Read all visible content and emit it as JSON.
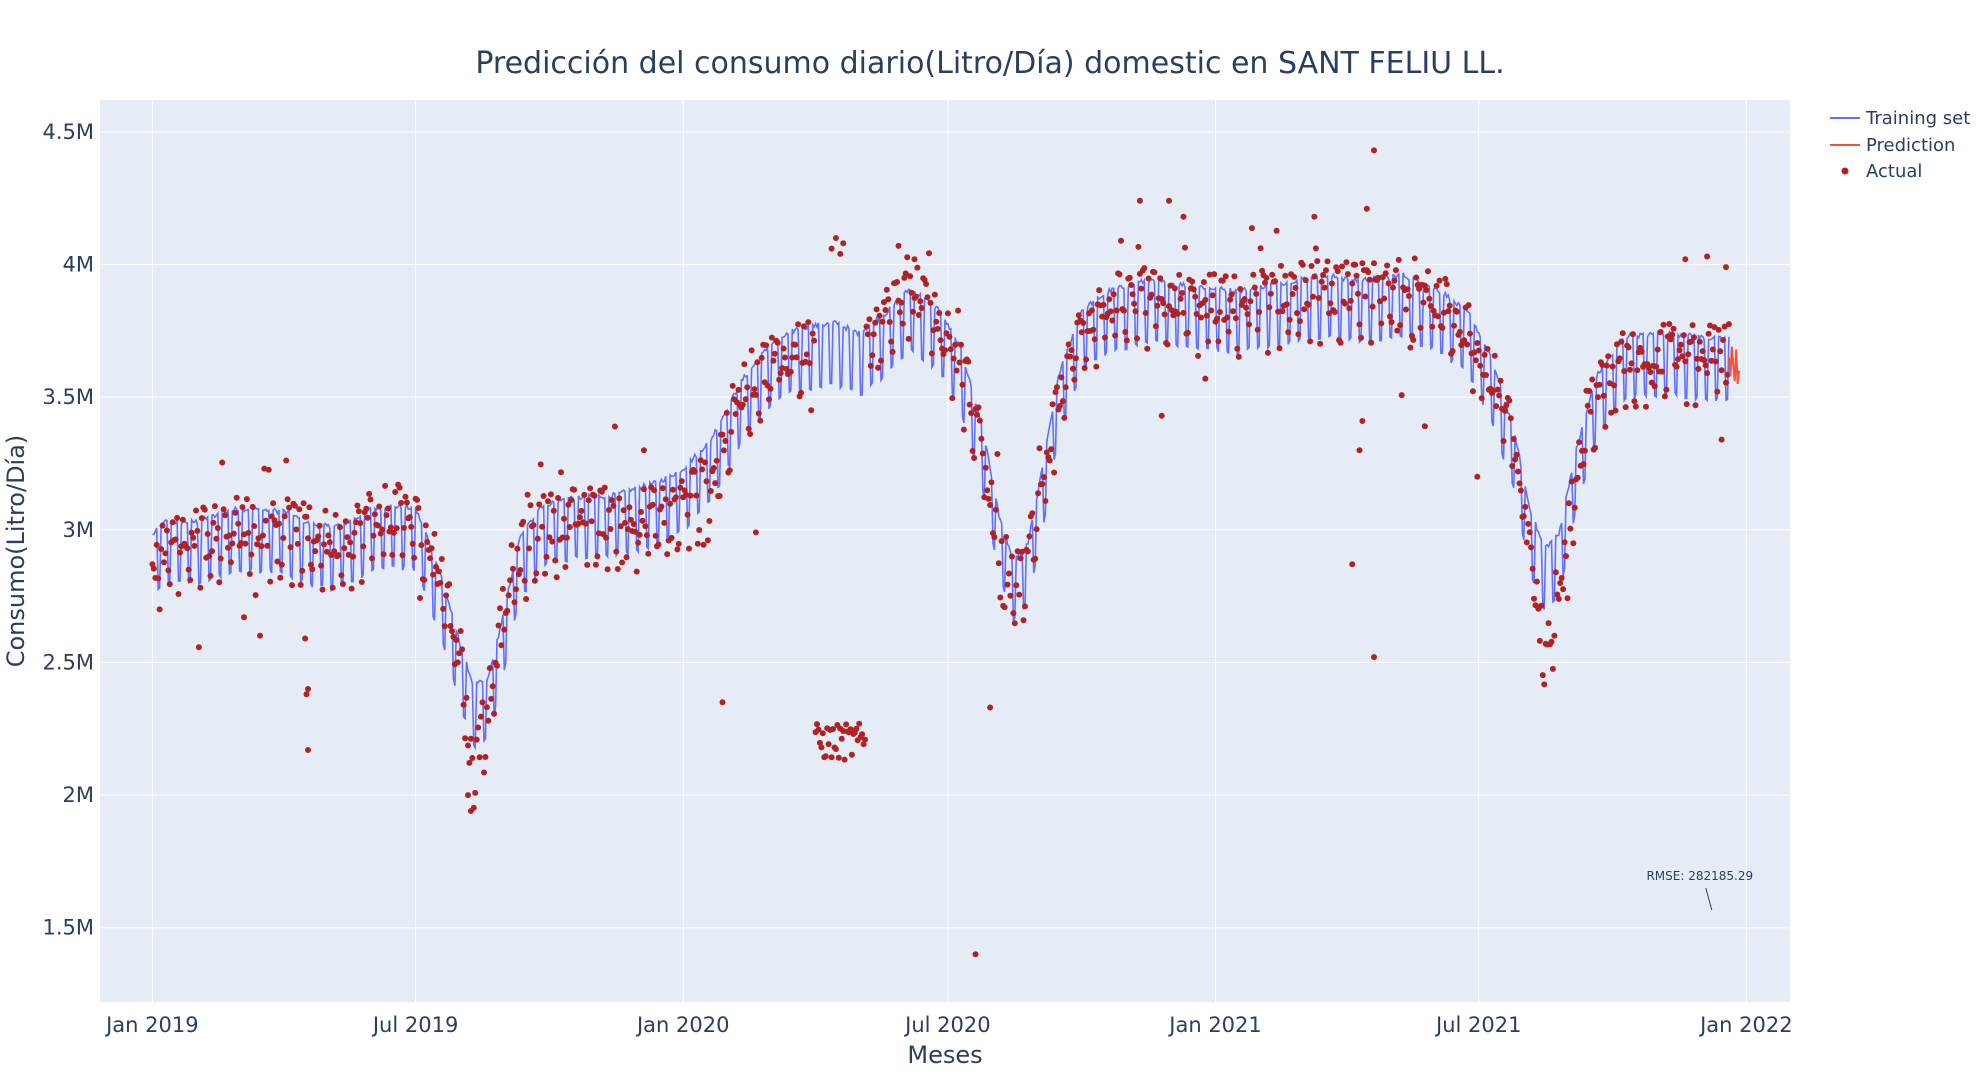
{
  "chart_data": {
    "type": "line",
    "title": "Predicción del consumo diario(Litro/Día) domestic en SANT FELIU LL.",
    "xlabel": "Meses",
    "ylabel": "Consumo(Litro/Día)",
    "x_ticks": [
      "Jan 2019",
      "Jul 2019",
      "Jan 2020",
      "Jul 2020",
      "Jan 2021",
      "Jul 2021",
      "Jan 2022"
    ],
    "y_ticks": [
      "1.5M",
      "2M",
      "2.5M",
      "3M",
      "3.5M",
      "4M",
      "4.5M"
    ],
    "xlim": [
      "2018-11-26",
      "2022-01-31"
    ],
    "ylim": [
      1220000,
      4620000
    ],
    "grid": true,
    "legend_position": "top-right",
    "colors": {
      "training": "#636efa",
      "prediction": "#ef553b",
      "actual": "#b22222",
      "plot_bg": "#e5ecf6",
      "grid": "#ffffff"
    },
    "weekly_pattern": {
      "weekday_offset": 80000,
      "weekend_offset": -150000
    },
    "series": [
      {
        "name": "Training set",
        "kind": "line",
        "trend": [
          [
            "2019-01-01",
            2900000
          ],
          [
            "2019-01-10",
            2950000
          ],
          [
            "2019-02-01",
            2950000
          ],
          [
            "2019-03-01",
            3000000
          ],
          [
            "2019-04-01",
            2990000
          ],
          [
            "2019-04-20",
            2940000
          ],
          [
            "2019-05-05",
            2930000
          ],
          [
            "2019-05-20",
            2960000
          ],
          [
            "2019-06-01",
            3000000
          ],
          [
            "2019-06-15",
            3010000
          ],
          [
            "2019-07-01",
            3000000
          ],
          [
            "2019-07-10",
            2880000
          ],
          [
            "2019-07-20",
            2720000
          ],
          [
            "2019-08-01",
            2480000
          ],
          [
            "2019-08-10",
            2330000
          ],
          [
            "2019-08-20",
            2360000
          ],
          [
            "2019-09-01",
            2640000
          ],
          [
            "2019-09-10",
            2880000
          ],
          [
            "2019-09-25",
            3010000
          ],
          [
            "2019-10-15",
            3040000
          ],
          [
            "2019-11-15",
            3050000
          ],
          [
            "2019-12-15",
            3100000
          ],
          [
            "2020-01-01",
            3150000
          ],
          [
            "2020-01-20",
            3260000
          ],
          [
            "2020-02-10",
            3480000
          ],
          [
            "2020-03-01",
            3620000
          ],
          [
            "2020-03-20",
            3680000
          ],
          [
            "2020-04-15",
            3700000
          ],
          [
            "2020-05-01",
            3660000
          ],
          [
            "2020-05-20",
            3740000
          ],
          [
            "2020-06-05",
            3830000
          ],
          [
            "2020-06-25",
            3750000
          ],
          [
            "2020-07-10",
            3600000
          ],
          [
            "2020-07-25",
            3300000
          ],
          [
            "2020-08-05",
            2980000
          ],
          [
            "2020-08-15",
            2800000
          ],
          [
            "2020-08-25",
            2870000
          ],
          [
            "2020-09-05",
            3180000
          ],
          [
            "2020-09-15",
            3500000
          ],
          [
            "2020-10-01",
            3750000
          ],
          [
            "2020-10-20",
            3820000
          ],
          [
            "2020-11-15",
            3860000
          ],
          [
            "2020-12-15",
            3840000
          ],
          [
            "2021-01-15",
            3820000
          ],
          [
            "2021-02-15",
            3850000
          ],
          [
            "2021-03-15",
            3880000
          ],
          [
            "2021-04-10",
            3860000
          ],
          [
            "2021-05-10",
            3880000
          ],
          [
            "2021-06-05",
            3820000
          ],
          [
            "2021-06-25",
            3730000
          ],
          [
            "2021-07-10",
            3560000
          ],
          [
            "2021-07-25",
            3300000
          ],
          [
            "2021-08-05",
            3000000
          ],
          [
            "2021-08-15",
            2850000
          ],
          [
            "2021-08-25",
            2900000
          ],
          [
            "2021-09-05",
            3200000
          ],
          [
            "2021-09-20",
            3500000
          ],
          [
            "2021-10-10",
            3650000
          ],
          [
            "2021-11-10",
            3660000
          ],
          [
            "2021-12-10",
            3640000
          ],
          [
            "2021-12-20",
            3640000
          ]
        ]
      },
      {
        "name": "Prediction",
        "kind": "line",
        "points": [
          [
            "2021-12-20",
            3650000
          ],
          [
            "2021-12-21",
            3580000
          ],
          [
            "2021-12-22",
            3690000
          ],
          [
            "2021-12-23",
            3620000
          ],
          [
            "2021-12-24",
            3560000
          ],
          [
            "2021-12-25",
            3680000
          ],
          [
            "2021-12-26",
            3550000
          ],
          [
            "2021-12-27",
            3600000
          ]
        ]
      },
      {
        "name": "Actual",
        "kind": "markers",
        "trend": [
          [
            "2019-01-01",
            2820000
          ],
          [
            "2019-01-10",
            2920000
          ],
          [
            "2019-02-01",
            2940000
          ],
          [
            "2019-03-01",
            2990000
          ],
          [
            "2019-04-01",
            2980000
          ],
          [
            "2019-04-20",
            2950000
          ],
          [
            "2019-05-05",
            2930000
          ],
          [
            "2019-05-20",
            2960000
          ],
          [
            "2019-06-01",
            3020000
          ],
          [
            "2019-06-15",
            3040000
          ],
          [
            "2019-07-01",
            3000000
          ],
          [
            "2019-07-10",
            2900000
          ],
          [
            "2019-07-20",
            2780000
          ],
          [
            "2019-08-01",
            2500000
          ],
          [
            "2019-08-08",
            2100000
          ],
          [
            "2019-08-15",
            2150000
          ],
          [
            "2019-08-25",
            2500000
          ],
          [
            "2019-09-05",
            2800000
          ],
          [
            "2019-09-20",
            2980000
          ],
          [
            "2019-10-15",
            3020000
          ],
          [
            "2019-11-15",
            3030000
          ],
          [
            "2019-12-15",
            3020000
          ],
          [
            "2020-01-01",
            3080000
          ],
          [
            "2020-01-20",
            3150000
          ],
          [
            "2020-02-10",
            3500000
          ],
          [
            "2020-03-01",
            3600000
          ],
          [
            "2020-03-20",
            3650000
          ],
          [
            "2020-04-15",
            3700000
          ],
          [
            "2020-05-20",
            3800000
          ],
          [
            "2020-06-05",
            3900000
          ],
          [
            "2020-06-25",
            3750000
          ],
          [
            "2020-07-10",
            3600000
          ],
          [
            "2020-07-25",
            3300000
          ],
          [
            "2020-08-05",
            2900000
          ],
          [
            "2020-08-15",
            2750000
          ],
          [
            "2020-08-25",
            2850000
          ],
          [
            "2020-09-05",
            3200000
          ],
          [
            "2020-09-15",
            3450000
          ],
          [
            "2020-10-01",
            3750000
          ],
          [
            "2020-10-20",
            3820000
          ],
          [
            "2020-11-15",
            3850000
          ],
          [
            "2020-12-15",
            3830000
          ],
          [
            "2021-01-15",
            3820000
          ],
          [
            "2021-02-15",
            3860000
          ],
          [
            "2021-03-15",
            3880000
          ],
          [
            "2021-04-10",
            3860000
          ],
          [
            "2021-05-10",
            3880000
          ],
          [
            "2021-06-05",
            3830000
          ],
          [
            "2021-06-25",
            3720000
          ],
          [
            "2021-07-10",
            3550000
          ],
          [
            "2021-07-25",
            3350000
          ],
          [
            "2021-08-05",
            2900000
          ],
          [
            "2021-08-12",
            2580000
          ],
          [
            "2021-08-20",
            2620000
          ],
          [
            "2021-09-01",
            3000000
          ],
          [
            "2021-09-15",
            3450000
          ],
          [
            "2021-10-10",
            3620000
          ],
          [
            "2021-11-10",
            3640000
          ],
          [
            "2021-12-10",
            3640000
          ],
          [
            "2021-12-20",
            3640000
          ]
        ],
        "outliers": [
          [
            "2019-04-18",
            2170000
          ],
          [
            "2019-04-17",
            2380000
          ],
          [
            "2019-04-18",
            2400000
          ],
          [
            "2019-04-16",
            2590000
          ],
          [
            "2019-03-05",
            2670000
          ],
          [
            "2019-08-08",
            1940000
          ],
          [
            "2019-08-06",
            2000000
          ],
          [
            "2020-01-28",
            2350000
          ],
          [
            "2020-07-20",
            1400000
          ],
          [
            "2020-07-30",
            2330000
          ],
          [
            "2021-04-05",
            2870000
          ],
          [
            "2021-04-20",
            2520000
          ],
          [
            "2021-04-10",
            3300000
          ],
          [
            "2021-04-12",
            3410000
          ],
          [
            "2021-05-25",
            3390000
          ],
          [
            "2021-06-30",
            3200000
          ],
          [
            "2021-04-20",
            4430000
          ],
          [
            "2020-11-25",
            3430000
          ],
          [
            "2020-12-25",
            3570000
          ],
          [
            "2021-12-15",
            3340000
          ],
          [
            "2020-04-20",
            4080000
          ],
          [
            "2020-04-15",
            4100000
          ],
          [
            "2020-04-12",
            4060000
          ],
          [
            "2020-04-18",
            4040000
          ],
          [
            "2020-05-28",
            4070000
          ],
          [
            "2020-06-08",
            4020000
          ],
          [
            "2020-11-10",
            4240000
          ],
          [
            "2020-11-30",
            4240000
          ],
          [
            "2020-12-10",
            4180000
          ],
          [
            "2021-03-10",
            4180000
          ],
          [
            "2021-04-15",
            4210000
          ],
          [
            "2021-11-20",
            4020000
          ],
          [
            "2021-12-05",
            4030000
          ],
          [
            "2021-12-18",
            3990000
          ],
          [
            "2019-12-05",
            3300000
          ],
          [
            "2020-02-20",
            2990000
          ]
        ],
        "clusters": [
          {
            "from": "2020-04-01",
            "to": "2020-05-05",
            "center": 2200000,
            "spread": 70000
          }
        ]
      }
    ],
    "annotations": [
      {
        "text": "RMSE: 282185.29",
        "x": "2021-11-30",
        "y": 1680000
      }
    ]
  }
}
